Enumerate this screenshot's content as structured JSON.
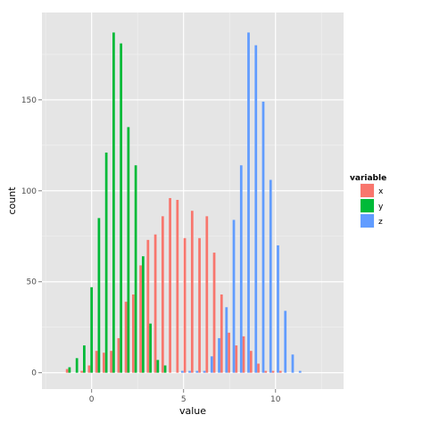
{
  "chart_data": {
    "type": "bar",
    "subtype": "dodged-histogram",
    "title": "",
    "xlabel": "value",
    "ylabel": "count",
    "xlim": [
      -2.7,
      13.7
    ],
    "ylim": [
      -9,
      198
    ],
    "x_ticks": [
      0,
      5,
      10
    ],
    "x_tick_labels": [
      "0",
      "5",
      "10"
    ],
    "y_ticks": [
      0,
      50,
      100,
      150
    ],
    "y_tick_labels": [
      "0",
      "50",
      "100",
      "150"
    ],
    "grid": true,
    "legend": {
      "title": "variable",
      "position": "right"
    },
    "bin_centers": [
      -1.2,
      -0.8,
      -0.4,
      0.0,
      0.4,
      0.8,
      1.2,
      1.6,
      2.0,
      2.4,
      2.8,
      3.2,
      3.6,
      4.0,
      4.4,
      4.8,
      5.2,
      5.6,
      6.0,
      6.4,
      6.8,
      7.2,
      7.6,
      8.0,
      8.4,
      8.8,
      9.2,
      9.6,
      10.0,
      10.4,
      10.8,
      11.2,
      11.6,
      12.0,
      12.4,
      12.8,
      13.2
    ],
    "series": [
      {
        "name": "x",
        "color": "#F8766D",
        "values": [
          2,
          0,
          1,
          4,
          12,
          11,
          12,
          19,
          39,
          43,
          59,
          73,
          76,
          86,
          96,
          95,
          74,
          89,
          74,
          86,
          66,
          43,
          22,
          15,
          20,
          12,
          5,
          1,
          1,
          1,
          0,
          0,
          0,
          0,
          0,
          0,
          0
        ]
      },
      {
        "name": "y",
        "color": "#00BA38",
        "values": [
          3,
          8,
          15,
          47,
          85,
          121,
          187,
          181,
          135,
          114,
          64,
          27,
          7,
          4,
          0,
          0,
          0,
          0,
          0,
          0,
          0,
          0,
          0,
          0,
          0,
          0,
          0,
          0,
          0,
          0,
          0,
          0,
          0,
          0,
          0,
          0,
          0
        ]
      },
      {
        "name": "z",
        "color": "#619CFF",
        "values": [
          0,
          0,
          0,
          0,
          0,
          0,
          0,
          0,
          0,
          0,
          0,
          0,
          0,
          0,
          0,
          1,
          1,
          1,
          1,
          9,
          19,
          36,
          84,
          114,
          187,
          180,
          149,
          106,
          70,
          34,
          10,
          1,
          0,
          0,
          0,
          0,
          0
        ]
      }
    ]
  }
}
